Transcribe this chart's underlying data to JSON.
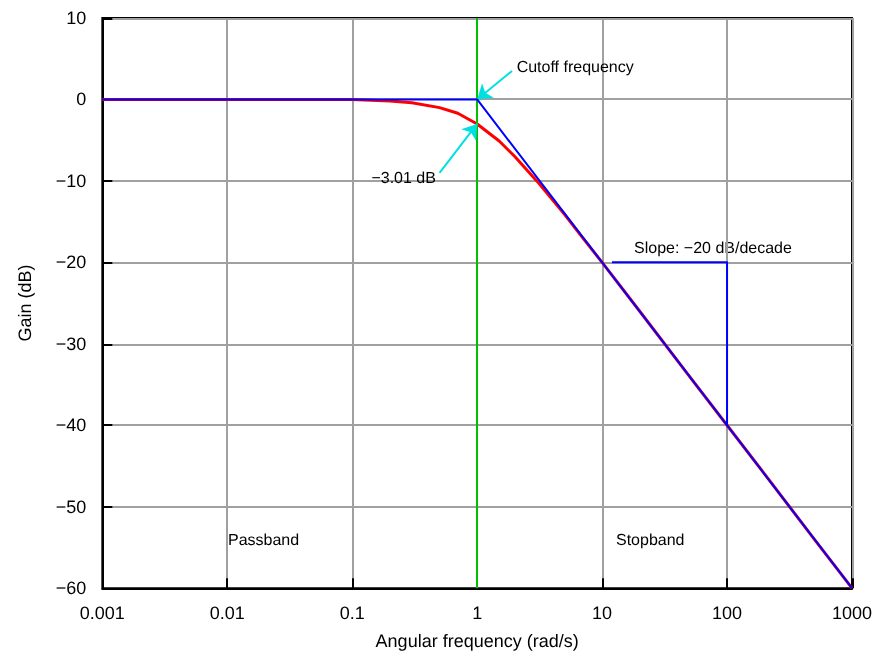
{
  "chart_data": {
    "type": "line",
    "xlabel": "Angular frequency (rad/s)",
    "ylabel": "Gain (dB)",
    "log": "x",
    "grid": true,
    "marker": "none",
    "line_style": "solid",
    "xlim": [
      0.001,
      1000
    ],
    "xticks": [
      0.001,
      0.01,
      0.1,
      1,
      10,
      100,
      1000
    ],
    "ylim": [
      -60,
      10
    ],
    "yticks": [
      -60,
      -50,
      -40,
      -30,
      -20,
      -10,
      0,
      10
    ],
    "series": [
      {
        "color": "#0000ff",
        "x": [
          0.001,
          1,
          1000
        ],
        "values": [
          0,
          0,
          -60
        ]
      },
      {
        "color": "#0000ff",
        "x": [
          12,
          100,
          100
        ],
        "values": [
          -20,
          -20,
          -40
        ]
      },
      {
        "color": "#ff0000",
        "x": [
          0.001,
          0.01,
          0.1,
          0.2,
          0.3,
          0.5,
          0.7,
          1,
          1.5,
          2,
          3,
          5,
          7,
          10,
          20,
          50,
          100,
          200,
          500,
          1000
        ],
        "values": [
          0,
          0,
          0,
          -0.2,
          -0.4,
          -1,
          -1.7,
          -3.01,
          -5.1,
          -7.0,
          -10.0,
          -14.1,
          -17.0,
          -20.0,
          -26.0,
          -34.0,
          -40.0,
          -46.0,
          -54.0,
          -60.0
        ]
      }
    ],
    "ref_lines": [
      {
        "axis": "x",
        "value": 1,
        "color": "#00c000"
      }
    ],
    "annotations": [
      {
        "text": "Cutoff frequency",
        "x": 1,
        "y": 0
      },
      {
        "text": "−3.01 dB",
        "x": 1,
        "y": -3.01
      },
      "Slope: −20 dB/decade",
      "Passband",
      "Stopband"
    ]
  }
}
